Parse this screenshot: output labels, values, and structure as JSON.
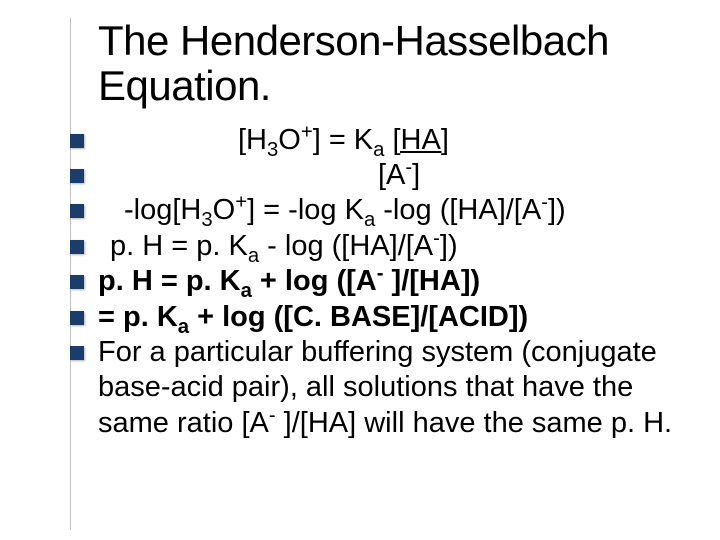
{
  "slide": {
    "title": "The Henderson-Hasselbach Equation.",
    "title_fontsize": 42,
    "title_color": "#000000",
    "background_color": "#ffffff",
    "bullet_color": "#1a3d6b",
    "bullet_size": 14,
    "text_color": "#000000",
    "text_fontsize": 29,
    "divider_color": "#c0c0c0",
    "items": [
      {
        "html": "[H<sub>3</sub>O<sup>+</sup>] = K<sub>a</sub>  <span class='underline'>[HA]</span>",
        "indent_class": "indent-center",
        "bold": false
      },
      {
        "html": "[A<sup>-</sup>]",
        "indent_class": "indent-a",
        "bold": false
      },
      {
        "html": "-log[H<sub>3</sub>O<sup>+</sup>] = -log K<sub>a</sub> -log ([HA]/[A<sup>-</sup>])",
        "indent_class": "indent-1",
        "bold": false
      },
      {
        "html": "p. H = p. K<sub>a</sub> - log ([HA]/[A<sup>-</sup>])",
        "indent_class": "indent-2",
        "bold": false
      },
      {
        "html": "p. H = p. K<sub>a</sub> +  log ([A<sup>-</sup> ]/[HA])",
        "indent_class": "",
        "bold": true
      },
      {
        "html": "= p. K<sub>a</sub> +  log ([C. BASE]/[ACID])",
        "indent_class": "",
        "bold": true
      },
      {
        "html": " For a particular buffering system (conjugate base-acid pair), all solutions that have the same ratio [A<sup>-</sup> ]/[HA] will have the same p. H.",
        "indent_class": "",
        "bold": false
      }
    ]
  }
}
